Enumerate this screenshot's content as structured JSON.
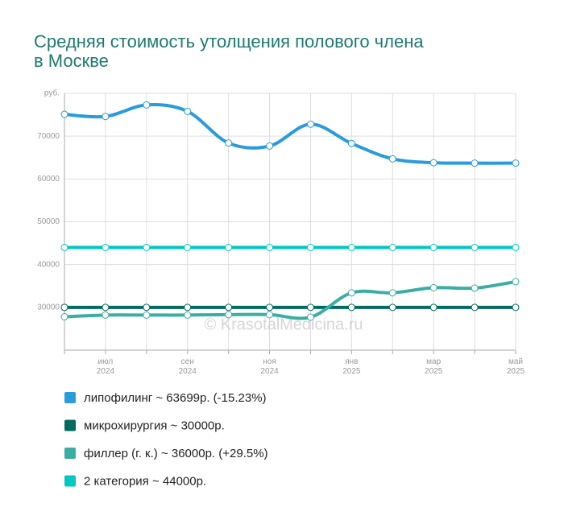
{
  "chart_data": {
    "type": "line",
    "title": [
      "Средняя стоимость утолщения полового члена",
      "в Москве"
    ],
    "watermark": "© KrasotalMedicina.ru",
    "categories": [
      null,
      "июл 2024",
      null,
      "сен 2024",
      null,
      "ноя 2024",
      null,
      "янв 2025",
      null,
      "мар 2025",
      null,
      "май 2025"
    ],
    "series": [
      {
        "name": "липофилинг ~ 63699р. (-15.23%)",
        "color": "#2a9bdb",
        "values": [
          75100,
          74600,
          77300,
          75800,
          68400,
          67700,
          72800,
          68300,
          64700,
          63800,
          63700,
          63699
        ]
      },
      {
        "name": "микрохирургия ~ 30000р.",
        "color": "#006b5e",
        "values": [
          30000,
          30000,
          30000,
          30000,
          30000,
          30000,
          30000,
          30000,
          30000,
          30000,
          30000,
          30000
        ]
      },
      {
        "name": "филлер (г. к.) ~ 36000р. (+29.5%)",
        "color": "#3aaea3",
        "values": [
          27800,
          28200,
          28200,
          28200,
          28300,
          28300,
          27700,
          33400,
          33400,
          34600,
          34500,
          36000
        ]
      },
      {
        "name": "2 категория ~ 44000р.",
        "color": "#00c8c0",
        "values": [
          44000,
          44000,
          44000,
          44000,
          44000,
          44000,
          44000,
          44000,
          44000,
          44000,
          44000,
          44000
        ]
      }
    ],
    "ylim": [
      20000,
      80000
    ],
    "yticks": [
      30000,
      40000,
      50000,
      60000,
      70000,
      {
        "value": 80000,
        "label": "руб."
      }
    ],
    "grid": true
  }
}
